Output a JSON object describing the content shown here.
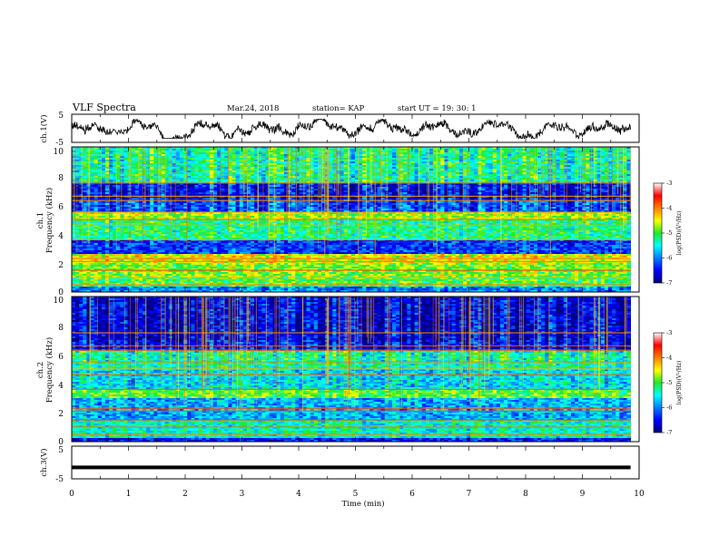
{
  "header": {
    "title": "VLF Spectra",
    "date": "Mar.24, 2018",
    "station": "station= KAP",
    "start": "start  UT =   19: 30: 1"
  },
  "panels": {
    "ch1_wave": {
      "ylabel": "ch.1(V)",
      "ticks": [
        "5",
        "-5"
      ]
    },
    "ch1_spec": {
      "ylabel_top": "ch.1",
      "ylabel": "Frequency (kHz)",
      "ticks": [
        "0",
        "2",
        "4",
        "6",
        "8",
        "10"
      ]
    },
    "ch2_spec": {
      "ylabel_top": "ch.2",
      "ylabel": "Frequency (kHz)",
      "ticks": [
        "0",
        "2",
        "4",
        "6",
        "8",
        "10"
      ]
    },
    "ch3_wave": {
      "ylabel": "ch.3(V)",
      "ticks": [
        "5",
        "-5"
      ]
    }
  },
  "xaxis": {
    "label": "Time (min)",
    "ticks": [
      "0",
      "1",
      "2",
      "3",
      "4",
      "5",
      "6",
      "7",
      "8",
      "9",
      "10"
    ]
  },
  "colorbar1": {
    "label": "log(PSD)(V²/Hz)",
    "ticks": [
      "-3",
      "-4",
      "-5",
      "-6",
      "-7"
    ]
  },
  "colorbar2": {
    "label": "log(PSD)(V²/Hz)",
    "ticks": [
      "-3",
      "-4",
      "-5",
      "-6",
      "-7"
    ]
  },
  "chart_data": [
    {
      "type": "line",
      "series_label": "ch.1(V)",
      "xlim": [
        0,
        10
      ],
      "ylim": [
        -5,
        5
      ],
      "x_unit": "min",
      "data_extent_min": 9.85,
      "description_values": {
        "mean": 0,
        "amplitude_range": [
          -3,
          3
        ]
      }
    },
    {
      "type": "heatmap",
      "channel": "ch.1",
      "xlim": [
        0,
        10
      ],
      "ylim": [
        0,
        10
      ],
      "ylabel": "Frequency (kHz)",
      "color_scale": {
        "min": -7,
        "max": -3,
        "label": "log(PSD)(V²/Hz)"
      },
      "bands_kHz": [
        {
          "range": [
            0.0,
            0.4
          ],
          "level": -6.0
        },
        {
          "range": [
            0.4,
            1.0
          ],
          "level": -5.0
        },
        {
          "range": [
            1.0,
            2.0
          ],
          "level": -4.8
        },
        {
          "range": [
            2.0,
            2.6
          ],
          "level": -4.5
        },
        {
          "range": [
            2.6,
            3.6
          ],
          "level": -6.3
        },
        {
          "range": [
            3.6,
            5.0
          ],
          "level": -5.2
        },
        {
          "range": [
            5.0,
            5.5
          ],
          "level": -4.7
        },
        {
          "range": [
            5.5,
            6.3
          ],
          "level": -6.2
        },
        {
          "range": [
            6.3,
            7.5
          ],
          "level": -6.5
        },
        {
          "range": [
            7.5,
            10.0
          ],
          "level": -5.3
        }
      ]
    },
    {
      "type": "heatmap",
      "channel": "ch.2",
      "xlim": [
        0,
        10
      ],
      "ylim": [
        0,
        10
      ],
      "ylabel": "Frequency (kHz)",
      "color_scale": {
        "min": -7,
        "max": -3,
        "label": "log(PSD)(V²/Hz)"
      },
      "bands_kHz": [
        {
          "range": [
            0.0,
            0.3
          ],
          "level": -6.4
        },
        {
          "range": [
            0.3,
            1.5
          ],
          "level": -5.4
        },
        {
          "range": [
            1.5,
            3.0
          ],
          "level": -5.8
        },
        {
          "range": [
            3.0,
            3.6
          ],
          "level": -4.9
        },
        {
          "range": [
            3.6,
            5.0
          ],
          "level": -5.6
        },
        {
          "range": [
            5.0,
            6.2
          ],
          "level": -5.3
        },
        {
          "range": [
            6.2,
            7.0
          ],
          "level": -6.5
        },
        {
          "range": [
            7.0,
            10.0
          ],
          "level": -6.6
        }
      ]
    },
    {
      "type": "line",
      "series_label": "ch.3(V)",
      "xlim": [
        0,
        10
      ],
      "ylim": [
        -5,
        5
      ],
      "x_unit": "min",
      "data_extent_min": 9.85,
      "constant_value": -1.5
    }
  ]
}
